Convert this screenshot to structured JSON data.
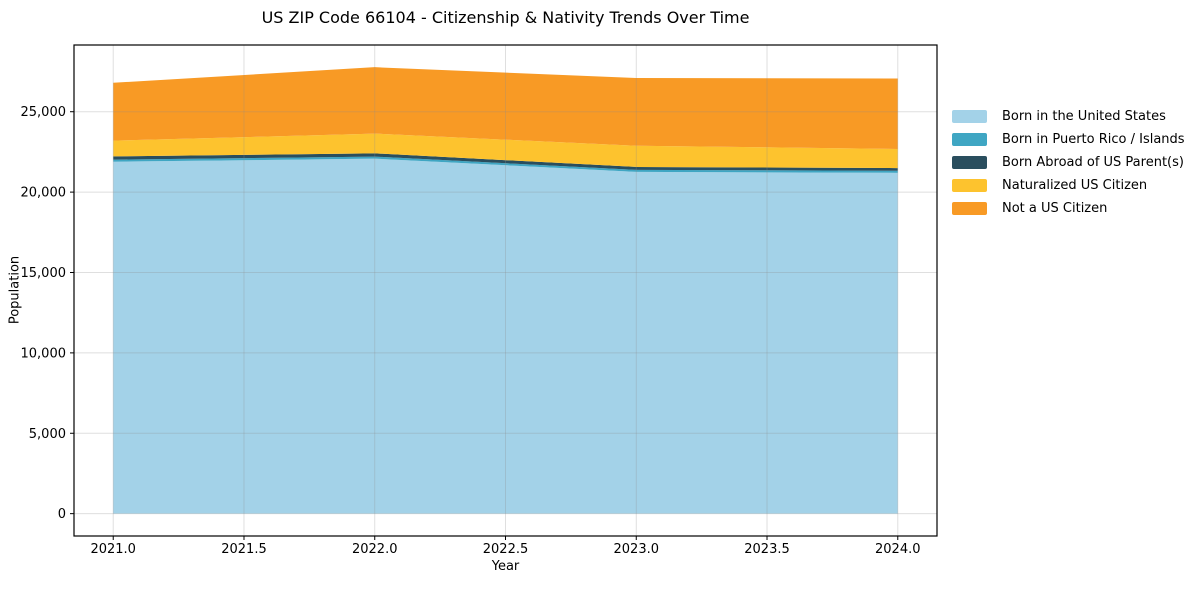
{
  "chart_data": {
    "type": "area",
    "stacked": true,
    "title": "US ZIP Code 66104 - Citizenship & Nativity Trends Over Time",
    "xlabel": "Year",
    "ylabel": "Population",
    "x": [
      2021,
      2022,
      2023,
      2024
    ],
    "series": [
      {
        "name": "Born in the United States",
        "color": "#A3D2E8",
        "values": [
          21890,
          22080,
          21260,
          21200
        ]
      },
      {
        "name": "Born in Puerto Rico / Islands",
        "color": "#3FA6C3",
        "values": [
          130,
          130,
          125,
          125
        ]
      },
      {
        "name": "Born Abroad of US Parent(s)",
        "color": "#2A4E5E",
        "values": [
          200,
          200,
          180,
          170
        ]
      },
      {
        "name": "Naturalized US Citizen",
        "color": "#FDC32E",
        "values": [
          980,
          1230,
          1320,
          1190
        ]
      },
      {
        "name": "Not a US Citizen",
        "color": "#F89A25",
        "values": [
          3600,
          4130,
          4210,
          4380
        ]
      }
    ],
    "xlim": [
      2020.85,
      2024.15
    ],
    "ylim": [
      -1390,
      29150
    ],
    "xticks": {
      "values": [
        2021.0,
        2021.5,
        2022.0,
        2022.5,
        2023.0,
        2023.5,
        2024.0
      ],
      "labels": [
        "2021.0",
        "2021.5",
        "2022.0",
        "2022.5",
        "2023.0",
        "2023.5",
        "2024.0"
      ]
    },
    "yticks": {
      "values": [
        0,
        5000,
        10000,
        15000,
        20000,
        25000
      ],
      "labels": [
        "0",
        "5,000",
        "10,000",
        "15,000",
        "20,000",
        "25,000"
      ]
    },
    "grid": true,
    "legend_position": "center-right-outside",
    "colors": {
      "spine": "#000000",
      "grid": "#8c8c8c",
      "background": "#ffffff"
    }
  }
}
